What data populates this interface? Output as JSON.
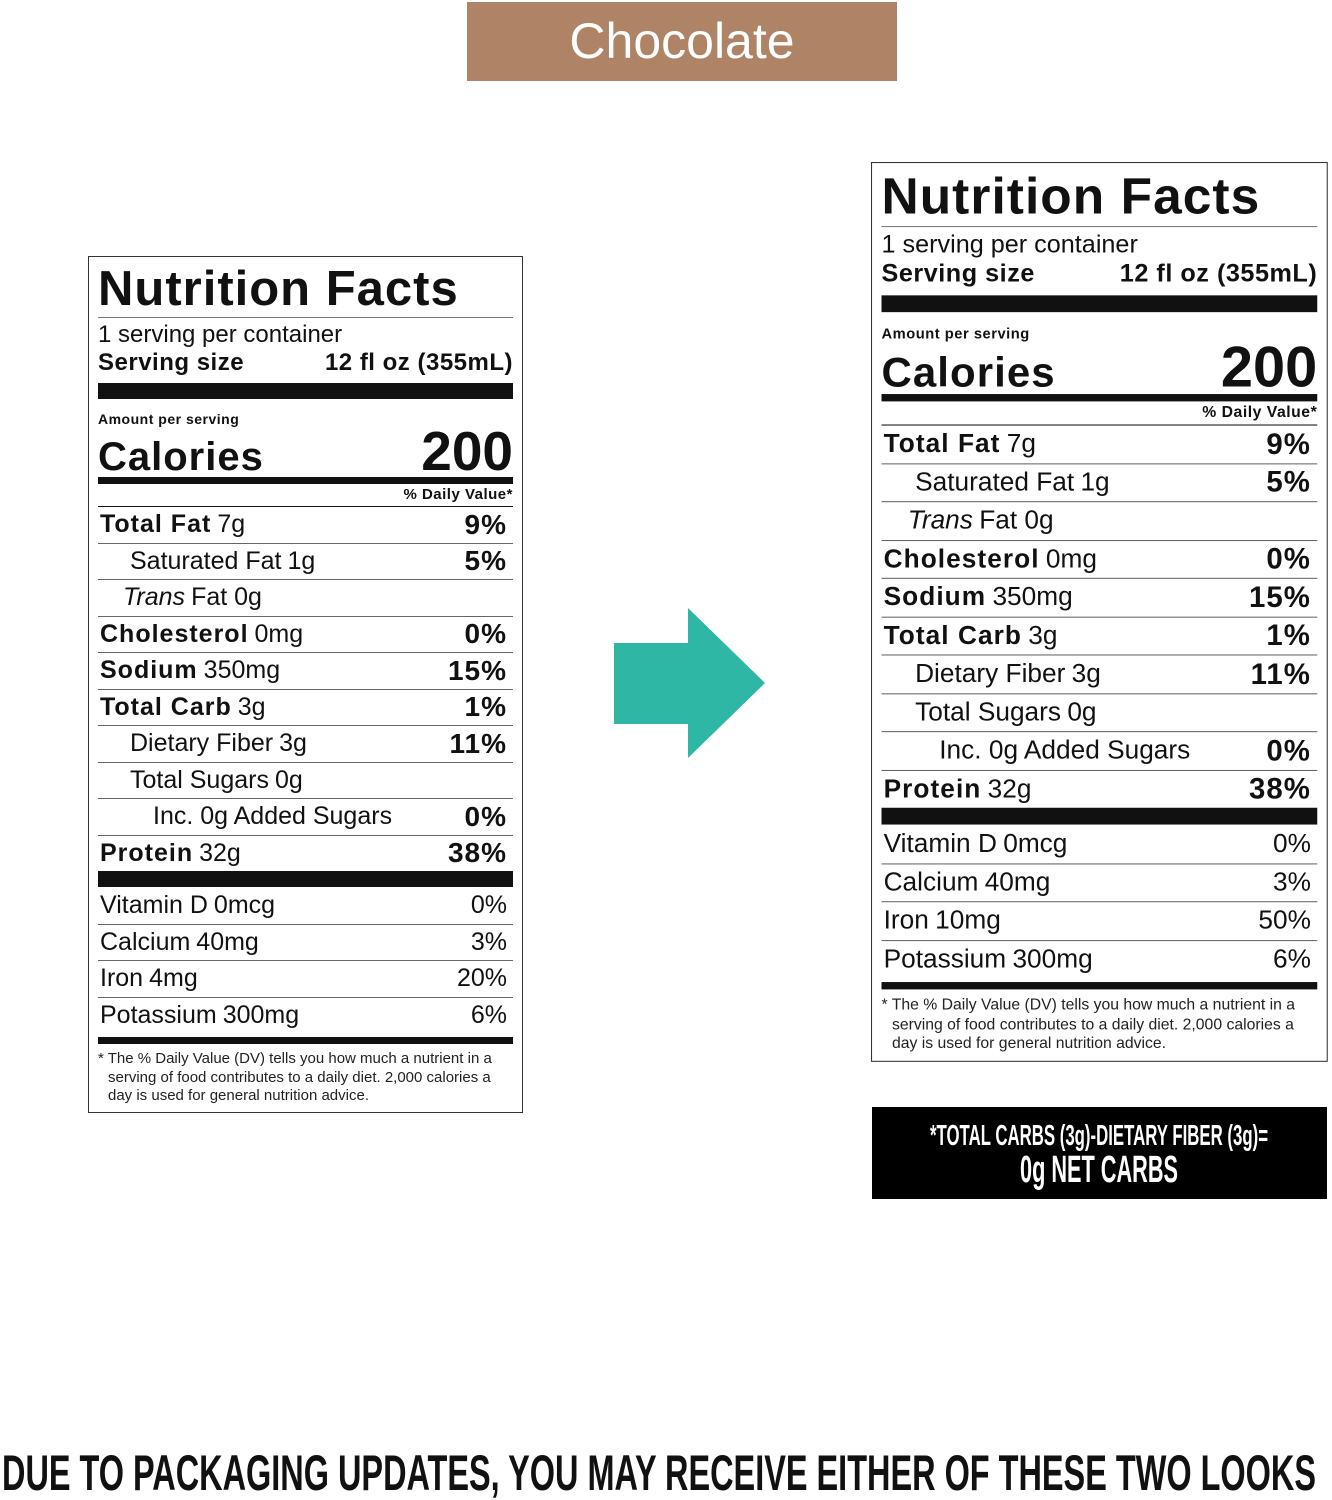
{
  "banner": "Chocolate",
  "labels": [
    {
      "title": "Nutrition Facts",
      "servings": "1 serving per container",
      "serving_size_label": "Serving size",
      "serving_size_value": "12 fl oz (355mL)",
      "amount_per_serving": "Amount per serving",
      "calories_label": "Calories",
      "calories": "200",
      "daily_value_header": "% Daily Value*",
      "nutrients": [
        {
          "name": "Total Fat",
          "amount": "7g",
          "dv": "9%"
        },
        {
          "name": "Saturated Fat",
          "amount": "1g",
          "dv": "5%"
        },
        {
          "name": "Trans",
          "amount": "Fat 0g"
        },
        {
          "name": "Cholesterol",
          "amount": "0mg",
          "dv": "0%"
        },
        {
          "name": "Sodium",
          "amount": "350mg",
          "dv": "15%"
        },
        {
          "name": "Total Carb",
          "amount": "3g",
          "dv": "1%"
        },
        {
          "name": "Dietary Fiber",
          "amount": "3g",
          "dv": "11%"
        },
        {
          "name": "Total Sugars",
          "amount": "0g"
        },
        {
          "name": "Inc. 0g Added Sugars",
          "dv": "0%"
        },
        {
          "name": "Protein",
          "amount": "32g",
          "dv": "38%"
        }
      ],
      "vitamins": [
        {
          "name": "Vitamin D",
          "amount": "0mcg",
          "dv": "0%"
        },
        {
          "name": "Calcium",
          "amount": "40mg",
          "dv": "3%"
        },
        {
          "name": "Iron",
          "amount": "4mg",
          "dv": "20%"
        },
        {
          "name": "Potassium",
          "amount": "300mg",
          "dv": "6%"
        }
      ],
      "footnote": "* The % Daily Value (DV) tells you how much a nutrient in a serving of food contributes to a daily diet. 2,000 calories a day is used for general nutrition advice."
    },
    {
      "title": "Nutrition Facts",
      "servings": "1 serving per container",
      "serving_size_label": "Serving size",
      "serving_size_value": "12 fl oz (355mL)",
      "amount_per_serving": "Amount per serving",
      "calories_label": "Calories",
      "calories": "200",
      "daily_value_header": "% Daily Value*",
      "nutrients": [
        {
          "name": "Total Fat",
          "amount": "7g",
          "dv": "9%"
        },
        {
          "name": "Saturated Fat",
          "amount": "1g",
          "dv": "5%"
        },
        {
          "name": "Trans",
          "amount": "Fat 0g"
        },
        {
          "name": "Cholesterol",
          "amount": "0mg",
          "dv": "0%"
        },
        {
          "name": "Sodium",
          "amount": "350mg",
          "dv": "15%"
        },
        {
          "name": "Total Carb",
          "amount": "3g",
          "dv": "1%"
        },
        {
          "name": "Dietary Fiber",
          "amount": "3g",
          "dv": "11%"
        },
        {
          "name": "Total Sugars",
          "amount": "0g"
        },
        {
          "name": "Inc. 0g Added Sugars",
          "dv": "0%"
        },
        {
          "name": "Protein",
          "amount": "32g",
          "dv": "38%"
        }
      ],
      "vitamins": [
        {
          "name": "Vitamin D",
          "amount": "0mcg",
          "dv": "0%"
        },
        {
          "name": "Calcium",
          "amount": "40mg",
          "dv": "3%"
        },
        {
          "name": "Iron",
          "amount": "10mg",
          "dv": "50%"
        },
        {
          "name": "Potassium",
          "amount": "300mg",
          "dv": "6%"
        }
      ],
      "footnote": "* The % Daily Value (DV) tells you how much a nutrient in a serving of food contributes to a daily diet. 2,000 calories a day is used for general nutrition advice."
    }
  ],
  "net_carbs": {
    "line1": "*TOTAL CARBS (3g)-DIETARY FIBER (3g)=",
    "line2": "0g NET CARBS"
  },
  "footer": "DUE TO PACKAGING UPDATES, YOU MAY RECEIVE EITHER OF THESE TWO LOOKS"
}
